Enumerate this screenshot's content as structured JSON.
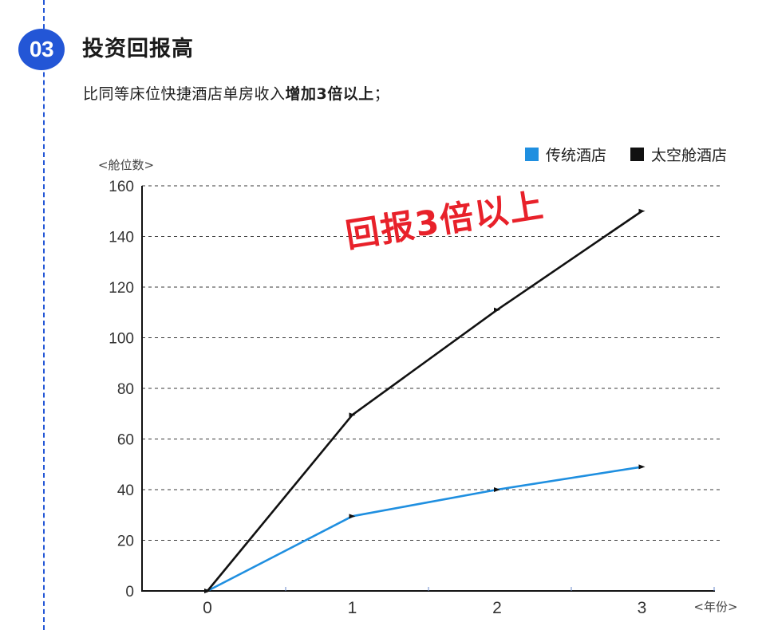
{
  "section": {
    "number": "03",
    "title": "投资回报高",
    "desc_plain": "比同等床位快捷酒店单房收入",
    "desc_bold": "增加3倍以上",
    "desc_end": "；"
  },
  "stamp": {
    "text": "回报3倍以上"
  },
  "colors": {
    "accent": "#2356d6",
    "stamp": "#e8212a"
  },
  "chart_data": {
    "type": "line",
    "ylabel": "<舱位数>",
    "xlabel": "<年份>",
    "x": [
      0,
      1,
      2,
      3
    ],
    "x_ticks": [
      "0",
      "1",
      "2",
      "3"
    ],
    "xlim": [
      -0.45,
      3.5
    ],
    "ylim": [
      0,
      160
    ],
    "y_ticks": [
      0,
      20,
      40,
      60,
      80,
      100,
      120,
      140,
      160
    ],
    "grid": "horizontal dashed",
    "legend": "top-right",
    "series": [
      {
        "name": "传统酒店",
        "color": "#1f8fe0",
        "values": [
          0,
          29.5,
          40,
          49
        ]
      },
      {
        "name": "太空舱酒店",
        "color": "#111111",
        "values": [
          0,
          69.5,
          111,
          150
        ]
      }
    ]
  }
}
